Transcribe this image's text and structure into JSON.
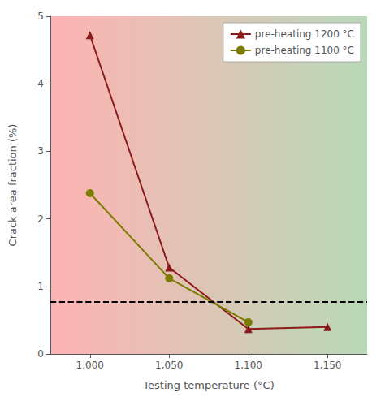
{
  "chart_data": {
    "type": "line",
    "xlabel": "Testing temperature (°C)",
    "ylabel": "Crack area fraction (%)",
    "series": [
      {
        "name": "pre-heating 1200 °C",
        "color": "#8B1A1A",
        "marker": "triangle",
        "x": [
          1000,
          1050,
          1100,
          1150
        ],
        "values": [
          4.72,
          1.28,
          0.37,
          0.4
        ]
      },
      {
        "name": "pre-heating 1100 °C",
        "color": "#7B7B00",
        "marker": "circle",
        "x": [
          1000,
          1050,
          1100
        ],
        "values": [
          2.38,
          1.12,
          0.47
        ]
      }
    ],
    "reference_line": {
      "y": 0.77,
      "line_style": "dashed",
      "color": "#000000"
    },
    "xlim": [
      975,
      1175
    ],
    "xticks": [
      1000,
      1050,
      1100,
      1150
    ],
    "ylim": [
      0,
      5
    ],
    "yticks": [
      0,
      1,
      2,
      3,
      4,
      5
    ],
    "grid": false,
    "legend": "upper right"
  }
}
